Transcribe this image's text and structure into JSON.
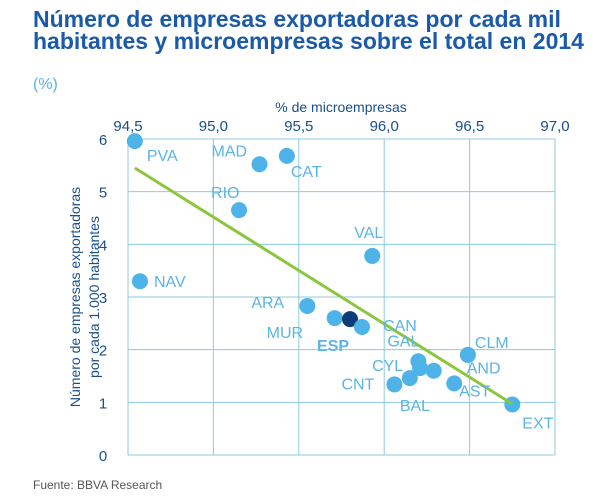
{
  "header": {
    "title": "Número de empresas exportadoras por cada mil habitantes y microempresas sobre el total en 2014",
    "subtitle": "(%)"
  },
  "footer": {
    "source": "Fuente: BBVA Research"
  },
  "chart_data": {
    "type": "scatter",
    "title": "Número de empresas exportadoras por cada mil habitantes y microempresas sobre el total en 2014",
    "subtitle": "(%)",
    "xlabel": "% de microempresas",
    "ylabel_lines": [
      "Número de empresas exportadoras",
      "por cada 1.000 habitantes"
    ],
    "xlim": [
      94.5,
      97.0
    ],
    "ylim": [
      0,
      6
    ],
    "x_ticks": [
      94.5,
      95.0,
      95.5,
      96.0,
      96.5,
      97.0
    ],
    "x_tick_labels": [
      "94,5",
      "95,0",
      "95,5",
      "96,0",
      "96,5",
      "97,0"
    ],
    "y_ticks": [
      0,
      1,
      2,
      3,
      4,
      5,
      6
    ],
    "y_tick_labels": [
      "0",
      "1",
      "2",
      "3",
      "4",
      "5",
      "6"
    ],
    "x_axis_position": "top",
    "grid": true,
    "colors": {
      "point": "#4db3e8",
      "highlight": "#0d3d78",
      "trend": "#8cc63f",
      "grid": "#8ccbe0",
      "label": "#5bb3e6"
    },
    "points": [
      {
        "label": "PVA",
        "x": 94.54,
        "y": 5.96,
        "lx": 12,
        "ly": 14
      },
      {
        "label": "MAD",
        "x": 95.27,
        "y": 5.52,
        "lx": -48,
        "ly": -14,
        "dark": true
      },
      {
        "label": "CAT",
        "x": 95.43,
        "y": 5.68,
        "lx": 4,
        "ly": 15
      },
      {
        "label": "RIO",
        "x": 95.15,
        "y": 4.65,
        "lx": -28,
        "ly": -18
      },
      {
        "label": "VAL",
        "x": 95.93,
        "y": 3.78,
        "lx": -18,
        "ly": -24
      },
      {
        "label": "NAV",
        "x": 94.57,
        "y": 3.3,
        "lx": 14,
        "ly": 0
      },
      {
        "label": "ARA",
        "x": 95.55,
        "y": 2.83,
        "lx": -56,
        "ly": -4
      },
      {
        "label": "MUR",
        "x": 95.71,
        "y": 2.6,
        "lx": -68,
        "ly": 14
      },
      {
        "label": "ESP",
        "x": 95.8,
        "y": 2.58,
        "lx": -33,
        "ly": 26,
        "highlight": true
      },
      {
        "label": "CAN",
        "x": 95.87,
        "y": 2.43,
        "lx": 21,
        "ly": -2
      },
      {
        "label": "GAL",
        "x": 96.2,
        "y": 1.78,
        "lx": -31,
        "ly": -21
      },
      {
        "label": "CLM",
        "x": 96.49,
        "y": 1.9,
        "lx": 7,
        "ly": -13
      },
      {
        "label": "CYL",
        "x": 96.21,
        "y": 1.65,
        "lx": -48,
        "ly": -3
      },
      {
        "label": "AND",
        "x": 96.29,
        "y": 1.6,
        "lx": 33,
        "ly": -3
      },
      {
        "label": "AST",
        "x": 96.41,
        "y": 1.36,
        "lx": 5,
        "ly": 7
      },
      {
        "label": "BAL",
        "x": 96.15,
        "y": 1.46,
        "lx": -10,
        "ly": 27
      },
      {
        "label": "CNT",
        "x": 96.06,
        "y": 1.34,
        "lx": -53,
        "ly": -1
      },
      {
        "label": "EXT",
        "x": 96.75,
        "y": 0.96,
        "lx": 10,
        "ly": 18
      }
    ],
    "trendline": {
      "x": [
        94.54,
        96.75
      ],
      "y": [
        5.45,
        0.97
      ]
    }
  }
}
